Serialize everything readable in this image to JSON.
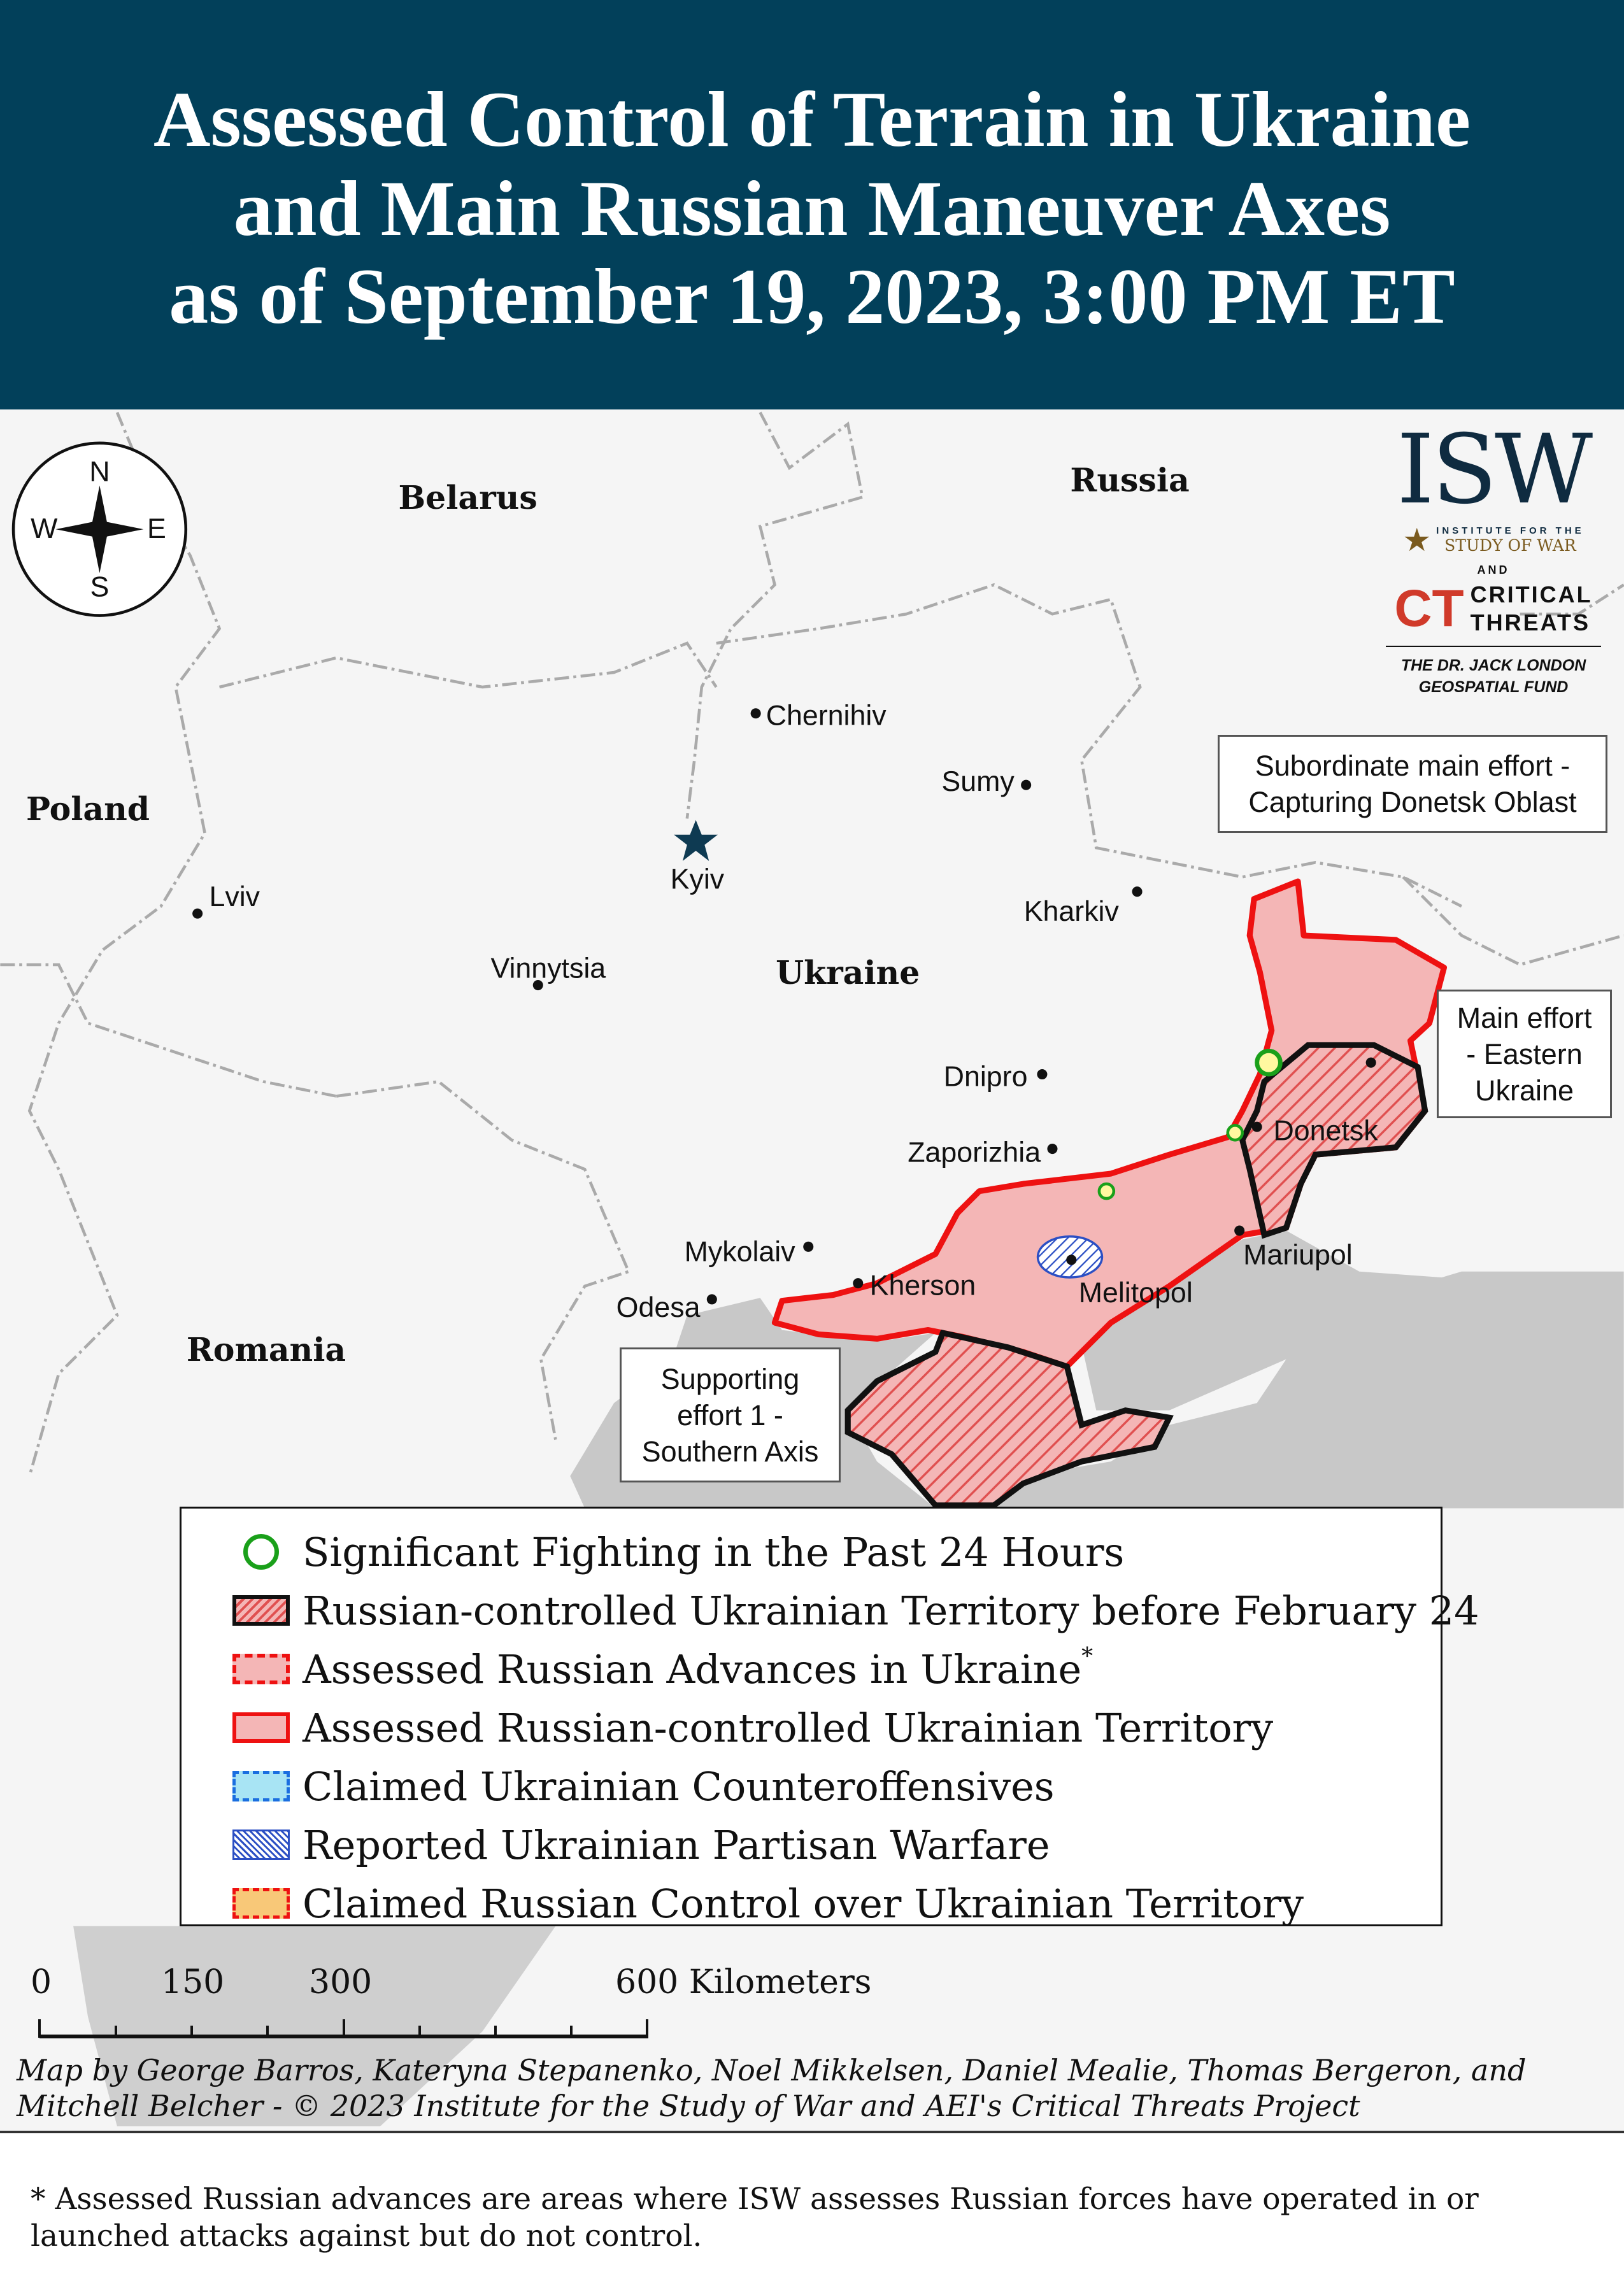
{
  "header": {
    "title_lines": [
      "Assessed Control of Terrain in Ukraine",
      "and Main Russian Maneuver Axes",
      "as of September 19, 2023, 3:00 PM ET"
    ],
    "background_color": "#02405a"
  },
  "compass": {
    "n": "N",
    "s": "S",
    "e": "E",
    "w": "W"
  },
  "countries": {
    "belarus": "Belarus",
    "russia": "Russia",
    "poland": "Poland",
    "ukraine": "Ukraine",
    "romania": "Romania"
  },
  "cities": {
    "chernihiv": "Chernihiv",
    "sumy": "Sumy",
    "kyiv": "Kyiv",
    "kharkiv": "Kharkiv",
    "lviv": "Lviv",
    "vinnytsia": "Vinnytsia",
    "dnipro": "Dnipro",
    "zaporizhia": "Zaporizhia",
    "mykolaiv": "Mykolaiv",
    "odesa": "Odesa",
    "kherson": "Kherson",
    "melitopol": "Melitopol",
    "mariupol": "Mariupol",
    "donetsk": "Donetsk"
  },
  "callouts": {
    "subordinate": [
      "Subordinate main effort -",
      "Capturing Donetsk Oblast"
    ],
    "main": [
      "Main effort",
      "- Eastern",
      "Ukraine"
    ],
    "supporting": [
      "Supporting",
      "effort 1 -",
      "Southern Axis"
    ]
  },
  "logo": {
    "isw": "ISW",
    "institute_for_the": "INSTITUTE FOR THE",
    "study_of_war": "STUDY OF WAR",
    "and": "AND",
    "ct": "CT",
    "critical": "CRITICAL",
    "threats": "THREATS",
    "fund_line1": "THE DR. JACK LONDON",
    "fund_line2": "GEOSPATIAL FUND"
  },
  "legend": {
    "items": [
      {
        "label": "Significant Fighting in the Past 24 Hours",
        "symbol": "green-ring",
        "color": "#1aa01a"
      },
      {
        "label": "Russian-controlled Ukrainian Territory before February 24",
        "symbol": "hatched-black-border",
        "color": "#e05050"
      },
      {
        "label": "Assessed Russian Advances in Ukraine",
        "superscript": "*",
        "symbol": "pink-dashed-red",
        "color": "#f4b6b6"
      },
      {
        "label": "Assessed Russian-controlled Ukrainian Territory",
        "symbol": "pink-solid-red",
        "color": "#f4b6b6"
      },
      {
        "label": "Claimed Ukrainian Counteroffensives",
        "symbol": "lightblue-dashed-blue",
        "color": "#a8e4f4"
      },
      {
        "label": "Reported Ukrainian Partisan Warfare",
        "symbol": "blue-hatch",
        "color": "#2b4fc4"
      },
      {
        "label": "Claimed Russian Control over Ukrainian Territory",
        "symbol": "orange-dashed-red",
        "color": "#f8c878"
      }
    ]
  },
  "scale": {
    "labels": [
      "0",
      "150",
      "300",
      "600 Kilometers"
    ]
  },
  "credits": [
    "Map by George Barros, Kateryna Stepanenko, Noel Mikkelsen, Daniel Mealie, Thomas Bergeron, and",
    "Mitchell Belcher - © 2023 Institute for the Study of War and AEI's Critical Threats Project"
  ],
  "footnote": "* Assessed Russian advances are areas where ISW assesses Russian forces have operated in or launched attacks against but do not control.",
  "colors": {
    "occupied_fill": "#f4b6b6",
    "occupied_border": "#ee1111",
    "sea": "#c8c8c8",
    "land": "#f5f5f5",
    "border_lines": "#aaaaaa"
  }
}
